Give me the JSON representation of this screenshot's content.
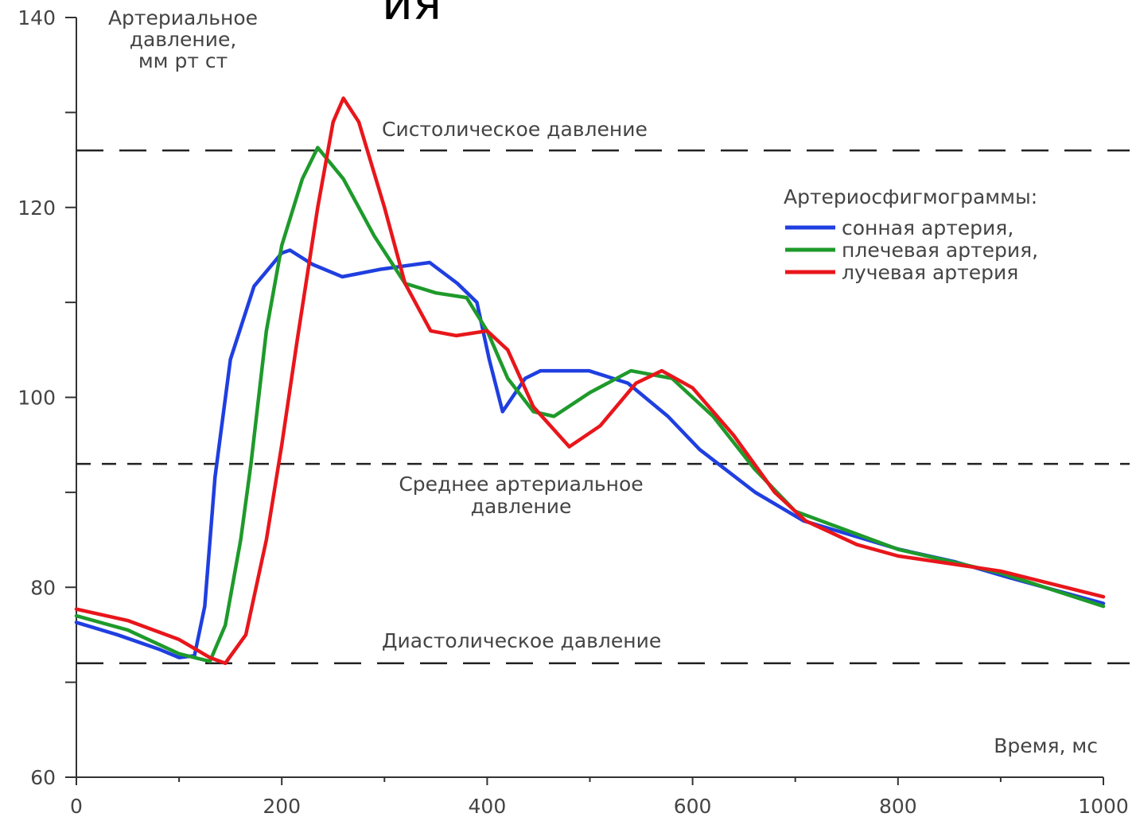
{
  "chart_data": {
    "type": "line",
    "title": "ия",
    "ylabel": [
      "Артериальное",
      "давление,",
      "мм рт ст"
    ],
    "xlabel": "Время, мс",
    "xlim": [
      0,
      1000
    ],
    "xticks": [
      0,
      200,
      400,
      600,
      800,
      1000
    ],
    "xminor": [
      100,
      300,
      500,
      700,
      900
    ],
    "ylim": [
      60,
      140
    ],
    "yticks": [
      60,
      80,
      100,
      120,
      140
    ],
    "yminor": [
      70,
      90,
      110,
      130
    ],
    "legend_title": "Артериосфигмограммы:",
    "legend": "upper right",
    "reference_lines": [
      {
        "value": 126,
        "label": [
          "Систолическое давление"
        ],
        "dash": "long"
      },
      {
        "value": 93,
        "label": [
          "Среднее артериальное",
          "давление"
        ],
        "dash": "short"
      },
      {
        "value": 72,
        "label": [
          "Диастолическое давление"
        ],
        "dash": "long"
      }
    ],
    "series": [
      {
        "name": "сонная артерия,",
        "color": "#1f3fe0",
        "x": [
          0,
          40,
          80,
          100,
          115,
          125,
          135,
          150,
          173,
          200,
          208,
          230,
          259,
          297,
          344,
          371,
          390,
          402,
          415,
          437,
          452,
          499,
          537,
          576,
          607,
          661,
          708,
          739,
          801,
          855,
          909,
          1000
        ],
        "values": [
          76.3,
          75,
          73.5,
          72.6,
          72.8,
          78,
          91.6,
          104,
          111.7,
          115.2,
          115.5,
          114,
          112.7,
          113.5,
          114.2,
          112,
          110,
          104,
          98.5,
          102,
          102.8,
          102.8,
          101.5,
          98,
          94.5,
          90,
          87,
          86,
          84,
          82.7,
          81,
          78.3
        ]
      },
      {
        "name": "плечевая артерия,",
        "color": "#1e9a2b",
        "x": [
          0,
          50,
          100,
          130,
          145,
          160,
          170,
          185,
          200,
          220,
          235,
          260,
          290,
          320,
          350,
          380,
          400,
          420,
          445,
          465,
          500,
          540,
          580,
          620,
          660,
          700,
          750,
          800,
          900,
          1000
        ],
        "values": [
          77,
          75.5,
          73,
          72.2,
          76,
          85,
          93,
          107,
          116,
          123,
          126.3,
          123,
          117,
          112,
          111,
          110.5,
          107,
          102,
          98.5,
          98,
          100.5,
          102.8,
          102,
          98,
          92.5,
          88,
          86,
          84,
          81.5,
          78
        ]
      },
      {
        "name": "лучевая артерия",
        "color": "#e8161b",
        "x": [
          0,
          50,
          100,
          130,
          145,
          165,
          185,
          200,
          215,
          235,
          250,
          260,
          275,
          300,
          320,
          345,
          370,
          400,
          420,
          445,
          480,
          510,
          545,
          570,
          600,
          640,
          680,
          710,
          760,
          800,
          900,
          1000
        ],
        "values": [
          77.7,
          76.5,
          74.5,
          72.6,
          72,
          75,
          85,
          95,
          106,
          120,
          129,
          131.5,
          129,
          120,
          112,
          107,
          106.5,
          107,
          105,
          99,
          94.8,
          97,
          101.5,
          102.8,
          101,
          96,
          90,
          87,
          84.5,
          83.3,
          81.7,
          79
        ]
      }
    ]
  }
}
